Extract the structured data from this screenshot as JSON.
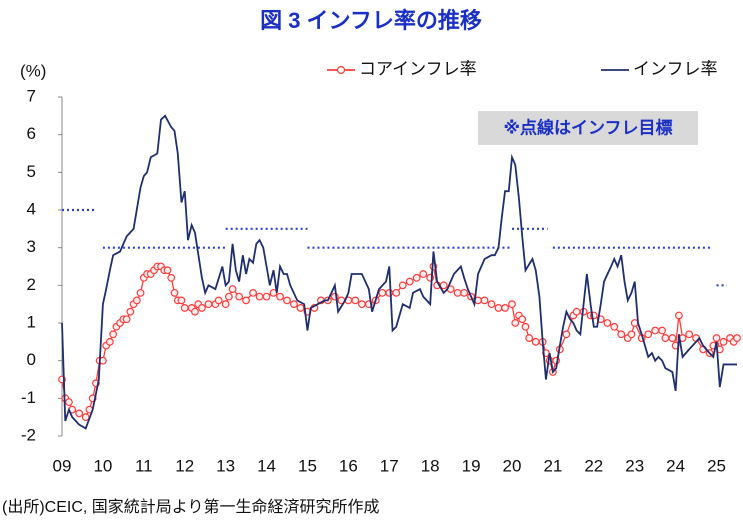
{
  "chart_data": {
    "type": "line",
    "title": "図 3  インフレ率の推移",
    "y_label": "(%)",
    "annotation": "※点線はインフレ目標",
    "source": "(出所)CEIC, 国家統計局より第一生命経済研究所作成",
    "xlim": [
      2009,
      2025.5
    ],
    "xticks": [
      {
        "value": 2009,
        "label": "09"
      },
      {
        "value": 2010,
        "label": "10"
      },
      {
        "value": 2011,
        "label": "11"
      },
      {
        "value": 2012,
        "label": "12"
      },
      {
        "value": 2013,
        "label": "13"
      },
      {
        "value": 2014,
        "label": "14"
      },
      {
        "value": 2015,
        "label": "15"
      },
      {
        "value": 2016,
        "label": "16"
      },
      {
        "value": 2017,
        "label": "17"
      },
      {
        "value": 2018,
        "label": "18"
      },
      {
        "value": 2019,
        "label": "19"
      },
      {
        "value": 2020,
        "label": "20"
      },
      {
        "value": 2021,
        "label": "21"
      },
      {
        "value": 2022,
        "label": "22"
      },
      {
        "value": 2023,
        "label": "23"
      },
      {
        "value": 2024,
        "label": "24"
      },
      {
        "value": 2025,
        "label": "25"
      }
    ],
    "ylim": [
      -2,
      7
    ],
    "yticks": [
      -2,
      -1,
      0,
      1,
      2,
      3,
      4,
      5,
      6,
      7
    ],
    "series": [
      {
        "name": "コアインフレ率",
        "color": "#ff3b3b",
        "marker": true,
        "x": [
          2009.0,
          2009.08,
          2009.17,
          2009.25,
          2009.42,
          2009.58,
          2009.67,
          2009.75,
          2009.83,
          2009.92,
          2010.0,
          2010.08,
          2010.17,
          2010.25,
          2010.33,
          2010.42,
          2010.5,
          2010.58,
          2010.67,
          2010.75,
          2010.83,
          2010.92,
          2011.0,
          2011.08,
          2011.17,
          2011.25,
          2011.33,
          2011.42,
          2011.5,
          2011.58,
          2011.67,
          2011.75,
          2011.83,
          2011.92,
          2012.0,
          2012.17,
          2012.25,
          2012.33,
          2012.42,
          2012.58,
          2012.75,
          2012.83,
          2013.0,
          2013.08,
          2013.17,
          2013.33,
          2013.5,
          2013.67,
          2013.83,
          2014.0,
          2014.17,
          2014.33,
          2014.5,
          2014.67,
          2014.83,
          2015.0,
          2015.17,
          2015.33,
          2015.5,
          2015.67,
          2015.83,
          2016.0,
          2016.17,
          2016.33,
          2016.5,
          2016.67,
          2016.83,
          2017.0,
          2017.17,
          2017.33,
          2017.5,
          2017.67,
          2017.83,
          2018.0,
          2018.08,
          2018.17,
          2018.33,
          2018.5,
          2018.67,
          2018.83,
          2019.0,
          2019.17,
          2019.33,
          2019.5,
          2019.67,
          2019.83,
          2020.0,
          2020.08,
          2020.17,
          2020.25,
          2020.33,
          2020.42,
          2020.58,
          2020.75,
          2020.83,
          2020.92,
          2021.0,
          2021.08,
          2021.17,
          2021.33,
          2021.5,
          2021.58,
          2021.75,
          2021.92,
          2022.0,
          2022.17,
          2022.33,
          2022.5,
          2022.67,
          2022.83,
          2022.92,
          2023.0,
          2023.17,
          2023.33,
          2023.5,
          2023.67,
          2023.75,
          2023.92,
          2024.0,
          2024.08,
          2024.17,
          2024.33,
          2024.5,
          2024.67,
          2024.83,
          2024.92,
          2025.0,
          2025.08,
          2025.17,
          2025.33,
          2025.42,
          2025.5
        ],
        "values": [
          -0.5,
          -1.0,
          -1.1,
          -1.3,
          -1.4,
          -1.5,
          -1.3,
          -1.0,
          -0.6,
          0.0,
          0.0,
          0.4,
          0.5,
          0.7,
          0.9,
          1.0,
          1.1,
          1.1,
          1.3,
          1.5,
          1.6,
          1.8,
          2.2,
          2.3,
          2.3,
          2.4,
          2.5,
          2.5,
          2.4,
          2.4,
          2.2,
          1.8,
          1.6,
          1.6,
          1.4,
          1.4,
          1.3,
          1.5,
          1.4,
          1.5,
          1.5,
          1.6,
          1.5,
          1.7,
          1.9,
          1.7,
          1.6,
          1.8,
          1.7,
          1.7,
          1.8,
          1.7,
          1.6,
          1.5,
          1.4,
          1.3,
          1.4,
          1.6,
          1.6,
          1.7,
          1.6,
          1.6,
          1.6,
          1.5,
          1.5,
          1.6,
          1.8,
          1.8,
          1.8,
          2.0,
          2.1,
          2.2,
          2.3,
          2.2,
          2.5,
          2.0,
          2.0,
          1.9,
          1.8,
          1.8,
          1.7,
          1.6,
          1.6,
          1.5,
          1.4,
          1.4,
          1.5,
          1.0,
          1.2,
          1.1,
          0.9,
          0.6,
          0.5,
          0.5,
          0.2,
          0.0,
          -0.3,
          0.0,
          0.3,
          0.7,
          1.2,
          1.3,
          1.3,
          1.2,
          1.2,
          1.1,
          1.0,
          0.9,
          0.7,
          0.6,
          0.7,
          1.0,
          0.6,
          0.7,
          0.8,
          0.8,
          0.6,
          0.6,
          0.4,
          1.2,
          0.6,
          0.7,
          0.6,
          0.3,
          0.2,
          0.4,
          0.6,
          0.3,
          0.5,
          0.6,
          0.5,
          0.6
        ]
      },
      {
        "name": "インフレ率",
        "color": "#1f2f6e",
        "marker": false,
        "x": [
          2009.0,
          2009.08,
          2009.17,
          2009.25,
          2009.42,
          2009.58,
          2009.75,
          2009.9,
          2010.0,
          2010.08,
          2010.17,
          2010.25,
          2010.42,
          2010.58,
          2010.75,
          2010.92,
          2011.0,
          2011.08,
          2011.17,
          2011.33,
          2011.42,
          2011.52,
          2011.67,
          2011.75,
          2011.83,
          2011.92,
          2012.0,
          2012.08,
          2012.17,
          2012.25,
          2012.42,
          2012.5,
          2012.58,
          2012.75,
          2012.92,
          2013.0,
          2013.08,
          2013.17,
          2013.25,
          2013.33,
          2013.42,
          2013.5,
          2013.58,
          2013.67,
          2013.75,
          2013.83,
          2013.92,
          2014.0,
          2014.08,
          2014.17,
          2014.25,
          2014.33,
          2014.42,
          2014.5,
          2014.58,
          2014.75,
          2014.92,
          2015.0,
          2015.08,
          2015.25,
          2015.42,
          2015.5,
          2015.67,
          2015.75,
          2015.92,
          2016.0,
          2016.08,
          2016.17,
          2016.33,
          2016.5,
          2016.58,
          2016.75,
          2016.92,
          2017.0,
          2017.08,
          2017.17,
          2017.33,
          2017.5,
          2017.58,
          2017.75,
          2017.83,
          2018.0,
          2018.08,
          2018.17,
          2018.33,
          2018.42,
          2018.58,
          2018.75,
          2018.83,
          2018.92,
          2019.0,
          2019.08,
          2019.17,
          2019.33,
          2019.5,
          2019.58,
          2019.67,
          2019.75,
          2019.83,
          2019.92,
          2020.0,
          2020.08,
          2020.17,
          2020.25,
          2020.33,
          2020.5,
          2020.58,
          2020.67,
          2020.75,
          2020.83,
          2020.92,
          2021.0,
          2021.08,
          2021.17,
          2021.25,
          2021.33,
          2021.42,
          2021.5,
          2021.58,
          2021.67,
          2021.75,
          2021.83,
          2021.92,
          2022.0,
          2022.08,
          2022.17,
          2022.25,
          2022.42,
          2022.5,
          2022.58,
          2022.67,
          2022.75,
          2022.83,
          2022.92,
          2023.0,
          2023.08,
          2023.17,
          2023.33,
          2023.42,
          2023.5,
          2023.58,
          2023.67,
          2023.75,
          2023.92,
          2024.0,
          2024.08,
          2024.17,
          2024.33,
          2024.5,
          2024.58,
          2024.67,
          2024.75,
          2024.83,
          2024.92,
          2025.0,
          2025.08,
          2025.17,
          2025.33,
          2025.5
        ],
        "values": [
          1.0,
          -1.6,
          -1.3,
          -1.5,
          -1.7,
          -1.8,
          -1.3,
          -0.5,
          1.5,
          1.9,
          2.4,
          2.8,
          2.9,
          3.3,
          3.5,
          4.6,
          4.9,
          5.0,
          5.4,
          5.5,
          6.4,
          6.5,
          6.2,
          6.1,
          5.5,
          4.2,
          4.5,
          3.2,
          3.6,
          3.4,
          2.2,
          1.8,
          2.0,
          1.9,
          2.5,
          2.0,
          2.1,
          3.1,
          2.4,
          2.1,
          2.8,
          2.3,
          2.7,
          2.6,
          3.1,
          3.2,
          3.0,
          2.5,
          2.0,
          2.4,
          1.8,
          2.5,
          2.3,
          2.3,
          2.0,
          1.6,
          1.5,
          0.8,
          1.4,
          1.5,
          1.6,
          1.6,
          2.0,
          1.3,
          1.6,
          1.8,
          2.3,
          2.3,
          2.3,
          1.9,
          1.3,
          1.9,
          2.1,
          2.5,
          0.8,
          0.9,
          1.5,
          1.4,
          1.8,
          1.9,
          1.7,
          1.5,
          2.9,
          2.1,
          1.8,
          1.9,
          2.3,
          2.5,
          2.2,
          1.9,
          1.7,
          1.5,
          2.3,
          2.7,
          2.8,
          2.8,
          3.0,
          3.8,
          4.5,
          4.5,
          5.4,
          5.2,
          4.3,
          3.3,
          2.4,
          2.7,
          2.4,
          1.7,
          0.5,
          -0.5,
          0.2,
          -0.3,
          -0.2,
          0.4,
          0.9,
          1.3,
          1.1,
          1.0,
          0.8,
          0.7,
          1.5,
          2.3,
          1.5,
          0.9,
          0.9,
          1.5,
          2.1,
          2.5,
          2.7,
          2.5,
          2.8,
          2.1,
          1.6,
          1.8,
          2.1,
          1.0,
          0.7,
          0.1,
          0.2,
          0.0,
          0.1,
          0.0,
          -0.2,
          -0.3,
          -0.8,
          0.7,
          0.1,
          0.3,
          0.5,
          0.6,
          0.4,
          0.3,
          0.2,
          0.1,
          0.5,
          -0.7,
          -0.1,
          -0.1,
          -0.1
        ]
      }
    ],
    "target_color": "#2a3fd9",
    "target_lines": [
      {
        "x": [
          2009.0,
          2009.83
        ],
        "value": 4
      },
      {
        "x": [
          2010.0,
          2013.0
        ],
        "value": 3
      },
      {
        "x": [
          2013.0,
          2015.0
        ],
        "value": 3.5
      },
      {
        "x": [
          2015.0,
          2020.0
        ],
        "value": 3
      },
      {
        "x": [
          2020.0,
          2020.87
        ],
        "value": 3.5
      },
      {
        "x": [
          2021.0,
          2024.9
        ],
        "value": 3
      },
      {
        "x": [
          2025.0,
          2025.25
        ],
        "value": 2
      }
    ]
  }
}
